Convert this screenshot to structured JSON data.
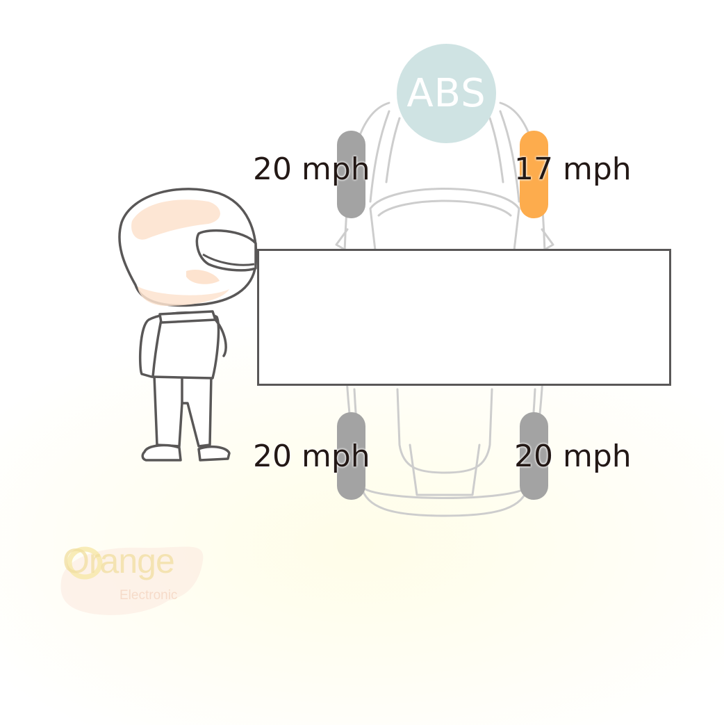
{
  "abs_badge": {
    "label": "ABS"
  },
  "wheels": {
    "front_left": {
      "speed": "20 mph",
      "status": "normal"
    },
    "front_right": {
      "speed": "17 mph",
      "status": "warning"
    },
    "rear_left": {
      "speed": "20 mph",
      "status": "normal"
    },
    "rear_right": {
      "speed": "20 mph",
      "status": "normal"
    }
  },
  "logo": {
    "brand": "Orange",
    "subtitle": "Electronic"
  },
  "colors": {
    "abs_badge": "#cfe3e3",
    "wheel_normal": "#a3a3a3",
    "wheel_warning": "#fdac4d",
    "text": "#231815",
    "outline": "#595757",
    "car_line": "#c9c9c9",
    "helmet_accent": "#fde3cf"
  },
  "icons": [
    "abs-icon",
    "car-outline-icon",
    "driver-mascot-icon",
    "orange-electronic-logo"
  ]
}
